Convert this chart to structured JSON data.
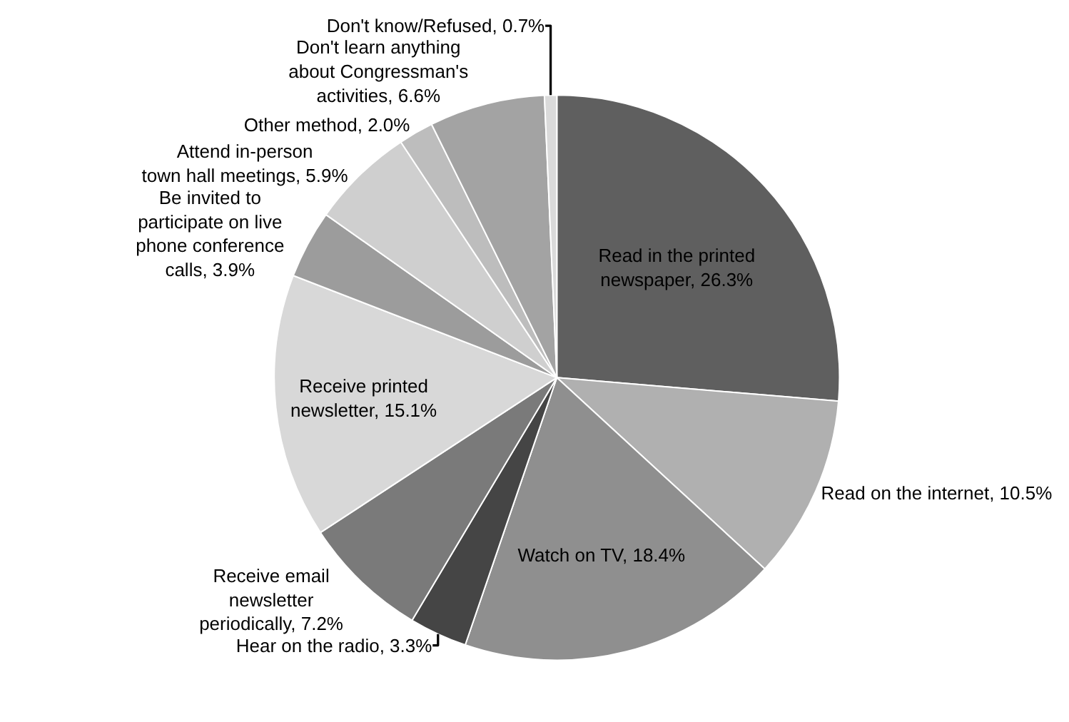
{
  "chart_data": {
    "type": "pie",
    "categories": [
      "Read in the printed newspaper",
      "Read on the internet",
      "Watch on TV",
      "Hear on the radio",
      "Receive email newsletter periodically",
      "Receive printed newsletter",
      "Be invited to participate on live phone conference calls",
      "Attend in-person town hall meetings",
      "Other method",
      "Don't learn anything about Congressman's activities",
      "Don't know/Refused"
    ],
    "values": [
      26.3,
      10.5,
      18.4,
      3.3,
      7.2,
      15.1,
      3.9,
      5.9,
      2.0,
      6.6,
      0.7
    ],
    "value_labels": [
      "26.3%",
      "10.5%",
      "18.4%",
      "3.3%",
      "7.2%",
      "15.1%",
      "3.9%",
      "5.9%",
      "2.0%",
      "6.6%",
      "0.7%"
    ],
    "colors": [
      "#5f5f5f",
      "#b0b0b0",
      "#8f8f8f",
      "#454545",
      "#7a7a7a",
      "#d8d8d8",
      "#9c9c9c",
      "#cfcfcf",
      "#bdbdbd",
      "#a3a3a3",
      "#dadada"
    ],
    "data_labels": true,
    "legend": false
  }
}
